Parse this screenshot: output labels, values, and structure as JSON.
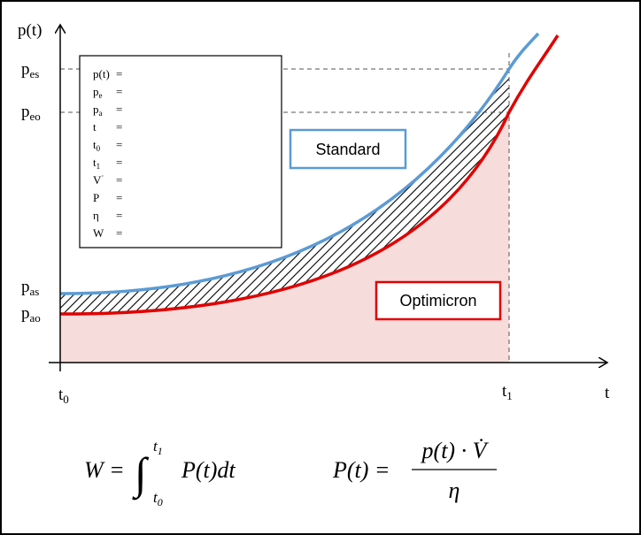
{
  "axes": {
    "y_label": "p(t)",
    "x_label": "t"
  },
  "y_labels": [
    {
      "base": "p",
      "sub": "es"
    },
    {
      "base": "p",
      "sub": "eo"
    },
    {
      "base": "p",
      "sub": "as"
    },
    {
      "base": "p",
      "sub": "ao"
    }
  ],
  "x_labels": [
    {
      "base": "t",
      "sub": "0"
    },
    {
      "base": "t",
      "sub": "1"
    }
  ],
  "legend_rows": [
    {
      "symbol": "p(t)",
      "eq": "="
    },
    {
      "symbol": "p",
      "sub": "e",
      "eq": "="
    },
    {
      "symbol": "p",
      "sub": "a",
      "eq": "="
    },
    {
      "symbol": "t",
      "eq": "="
    },
    {
      "symbol": "t",
      "sub": "0",
      "eq": "="
    },
    {
      "symbol": "t",
      "sub": "1",
      "eq": "="
    },
    {
      "symbol": "V",
      "sup": "·",
      "eq": "="
    },
    {
      "symbol": "P",
      "eq": "="
    },
    {
      "symbol": "η",
      "eq": "="
    },
    {
      "symbol": "W",
      "eq": "="
    }
  ],
  "tags": {
    "standard": "Standard",
    "optimicron": "Optimicron"
  },
  "formula_work": {
    "lhs": "W =",
    "integral": "∫",
    "upper": {
      "base": "t",
      "sub": "1"
    },
    "lower": {
      "base": "t",
      "sub": "0"
    },
    "integrand": "P(t)dt"
  },
  "formula_power": {
    "lhs": "P(t) =",
    "numerator": "p(t) · V̇",
    "denominator": "η"
  }
}
